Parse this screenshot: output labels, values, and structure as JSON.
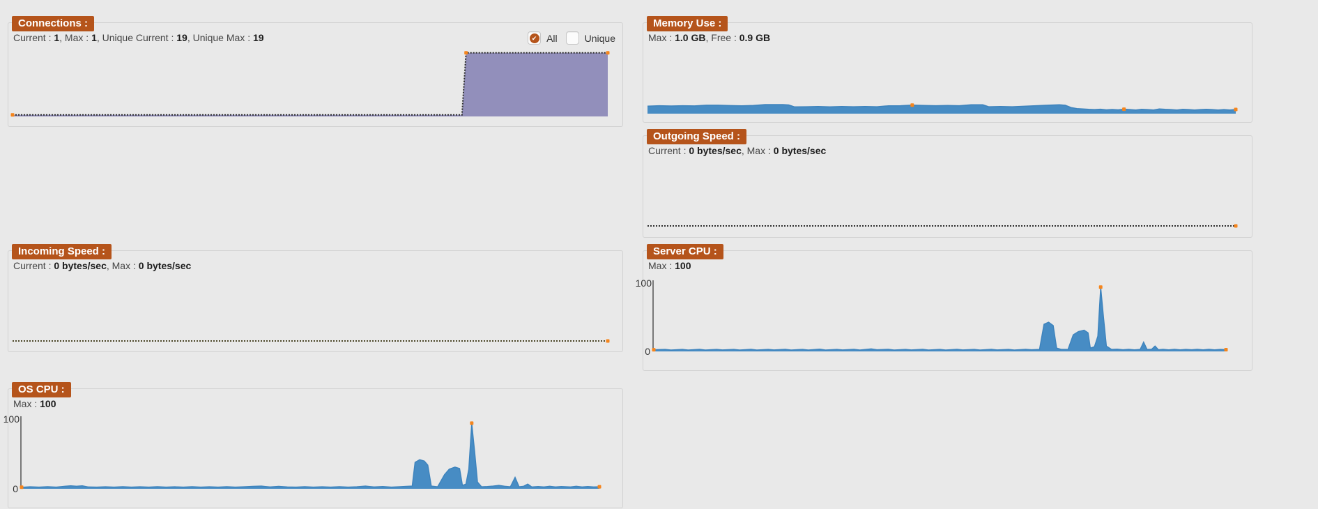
{
  "page": {
    "background": "#e9e9e9",
    "panel_border": "#d2d2d2",
    "accent": "#b5541b",
    "marker_color": "#f5851d",
    "text": "#454545",
    "value_text": "#1c1c1c"
  },
  "panels": {
    "connections": {
      "title": "Connections :",
      "stats": [
        [
          "Current : ",
          "1"
        ],
        [
          ", Max : ",
          "1"
        ],
        [
          ", Unique Current : ",
          "19"
        ],
        [
          ", Unique Max : ",
          "19"
        ]
      ],
      "checkboxes": [
        {
          "label": "All",
          "checked": true
        },
        {
          "label": "Unique",
          "checked": false
        }
      ]
    },
    "memory": {
      "title": "Memory Use :",
      "stats": [
        [
          "Max : ",
          "1.0 GB"
        ],
        [
          ", Free : ",
          "0.9 GB"
        ]
      ]
    },
    "outgoing": {
      "title": "Outgoing Speed :",
      "stats": [
        [
          "Current : ",
          "0 bytes/sec"
        ],
        [
          ", Max : ",
          "0 bytes/sec"
        ]
      ]
    },
    "incoming": {
      "title": "Incoming Speed :",
      "stats": [
        [
          "Current : ",
          "0 bytes/sec"
        ],
        [
          ", Max : ",
          "0 bytes/sec"
        ]
      ]
    },
    "server_cpu": {
      "title": "Server CPU :",
      "stats": [
        [
          "Max : ",
          "100"
        ]
      ],
      "y_max_label": "100",
      "y_min_label": "0"
    },
    "os_cpu": {
      "title": "OS CPU :",
      "stats": [
        [
          "Max : ",
          "100"
        ]
      ],
      "y_max_label": "100",
      "y_min_label": "0"
    }
  },
  "chart_data": [
    {
      "id": "connections",
      "type": "area",
      "title": "Connections over time",
      "ylim": [
        0,
        20
      ],
      "grid": false,
      "legend": "none",
      "stroke": "#2b2b2b",
      "stroke_width": 2,
      "dashed": true,
      "fill": "#928fbb",
      "points": [
        [
          0,
          0.25
        ],
        [
          75.5,
          0.25
        ],
        [
          76.2,
          19.2
        ],
        [
          100,
          19.2
        ]
      ],
      "markers": [
        [
          0,
          0.25
        ],
        [
          76.2,
          19.2
        ],
        [
          100,
          19.2
        ]
      ]
    },
    {
      "id": "memory",
      "type": "area",
      "title": "Memory use over time (GB)",
      "ylim": [
        0,
        1.0
      ],
      "grid": false,
      "legend": "none",
      "stroke": "#3d83bd",
      "stroke_width": 1.5,
      "dashed": false,
      "fill": "#478cc4",
      "points": [
        [
          0,
          0.112
        ],
        [
          2,
          0.12
        ],
        [
          4,
          0.115
        ],
        [
          6,
          0.12
        ],
        [
          8,
          0.116
        ],
        [
          10,
          0.128
        ],
        [
          12,
          0.128
        ],
        [
          14,
          0.122
        ],
        [
          16,
          0.118
        ],
        [
          18,
          0.124
        ],
        [
          20,
          0.138
        ],
        [
          23,
          0.138
        ],
        [
          24,
          0.132
        ],
        [
          25,
          0.1
        ],
        [
          27,
          0.102
        ],
        [
          29,
          0.106
        ],
        [
          31,
          0.1
        ],
        [
          33,
          0.106
        ],
        [
          35,
          0.102
        ],
        [
          37,
          0.106
        ],
        [
          39,
          0.102
        ],
        [
          41,
          0.118
        ],
        [
          43,
          0.12
        ],
        [
          45,
          0.13
        ],
        [
          47,
          0.124
        ],
        [
          49,
          0.12
        ],
        [
          51,
          0.124
        ],
        [
          53,
          0.12
        ],
        [
          55,
          0.134
        ],
        [
          57,
          0.134
        ],
        [
          58,
          0.102
        ],
        [
          60,
          0.106
        ],
        [
          62,
          0.102
        ],
        [
          64,
          0.11
        ],
        [
          66,
          0.12
        ],
        [
          68,
          0.128
        ],
        [
          70,
          0.134
        ],
        [
          71,
          0.128
        ],
        [
          72,
          0.09
        ],
        [
          73,
          0.072
        ],
        [
          74,
          0.066
        ],
        [
          75,
          0.06
        ],
        [
          76,
          0.056
        ],
        [
          77,
          0.062
        ],
        [
          78,
          0.052
        ],
        [
          79,
          0.058
        ],
        [
          80,
          0.052
        ],
        [
          81,
          0.062
        ],
        [
          82,
          0.056
        ],
        [
          83,
          0.05
        ],
        [
          84,
          0.06
        ],
        [
          85,
          0.056
        ],
        [
          86,
          0.05
        ],
        [
          87,
          0.066
        ],
        [
          88,
          0.06
        ],
        [
          89,
          0.056
        ],
        [
          90,
          0.05
        ],
        [
          91,
          0.06
        ],
        [
          92,
          0.056
        ],
        [
          93,
          0.05
        ],
        [
          94,
          0.056
        ],
        [
          95,
          0.06
        ],
        [
          96,
          0.056
        ],
        [
          97,
          0.05
        ],
        [
          98,
          0.056
        ],
        [
          99,
          0.05
        ],
        [
          100,
          0.058
        ]
      ],
      "markers": [
        [
          45,
          0.13
        ],
        [
          81,
          0.062
        ],
        [
          100,
          0.058
        ]
      ]
    },
    {
      "id": "outgoing",
      "type": "line",
      "title": "Outgoing speed over time (bytes/sec)",
      "ylim": [
        0,
        1
      ],
      "grid": false,
      "legend": "none",
      "stroke": "#2d2d2d",
      "stroke_width": 2,
      "dashed": true,
      "fill": null,
      "points": [
        [
          0,
          0
        ],
        [
          100,
          0
        ]
      ],
      "markers": [
        [
          100,
          0
        ]
      ]
    },
    {
      "id": "incoming",
      "type": "line",
      "title": "Incoming speed over time (bytes/sec)",
      "ylim": [
        0,
        1
      ],
      "grid": false,
      "legend": "none",
      "stroke": "#4a4526",
      "stroke_width": 2,
      "dashed": true,
      "fill": null,
      "points": [
        [
          0,
          0
        ],
        [
          100,
          0
        ]
      ],
      "markers": [
        [
          100,
          0
        ]
      ]
    },
    {
      "id": "server_cpu",
      "type": "area",
      "title": "Server CPU over time (%)",
      "ylim": [
        0,
        100
      ],
      "grid": false,
      "legend": "none",
      "stroke": "#3d83bd",
      "stroke_width": 1.4,
      "dashed": false,
      "fill": "#478cc4",
      "points": [
        [
          0,
          1.5
        ],
        [
          2,
          2
        ],
        [
          3,
          1
        ],
        [
          5,
          2
        ],
        [
          6,
          1.2
        ],
        [
          8,
          2.2
        ],
        [
          9,
          1.2
        ],
        [
          11,
          2
        ],
        [
          12,
          1.3
        ],
        [
          14,
          2
        ],
        [
          15,
          1.2
        ],
        [
          17,
          2.2
        ],
        [
          18,
          1.2
        ],
        [
          20,
          2
        ],
        [
          21,
          1.3
        ],
        [
          23,
          2.2
        ],
        [
          24,
          1.2
        ],
        [
          26,
          2
        ],
        [
          27,
          1.2
        ],
        [
          29,
          2.4
        ],
        [
          30,
          1.2
        ],
        [
          32,
          2
        ],
        [
          33,
          1.3
        ],
        [
          35,
          2.2
        ],
        [
          36,
          1.2
        ],
        [
          38,
          2.8
        ],
        [
          39,
          1.5
        ],
        [
          41,
          2.2
        ],
        [
          42,
          1.2
        ],
        [
          44,
          2
        ],
        [
          45,
          1.3
        ],
        [
          47,
          2.2
        ],
        [
          48,
          1.2
        ],
        [
          50,
          2
        ],
        [
          51,
          1.2
        ],
        [
          53,
          2.2
        ],
        [
          54,
          1.3
        ],
        [
          56,
          2
        ],
        [
          57,
          1.2
        ],
        [
          59,
          2.2
        ],
        [
          60,
          1.3
        ],
        [
          62,
          2
        ],
        [
          63,
          1.2
        ],
        [
          65,
          2.2
        ],
        [
          66,
          1.5
        ],
        [
          67.4,
          2
        ],
        [
          68.2,
          40
        ],
        [
          69,
          43
        ],
        [
          69.8,
          38
        ],
        [
          70.4,
          4
        ],
        [
          71.2,
          2
        ],
        [
          72.4,
          2.2
        ],
        [
          73.3,
          24
        ],
        [
          74.2,
          29
        ],
        [
          75.2,
          31
        ],
        [
          75.9,
          27
        ],
        [
          76.3,
          4
        ],
        [
          77,
          6
        ],
        [
          77.6,
          22
        ],
        [
          78.1,
          96
        ],
        [
          78.6,
          50
        ],
        [
          79.1,
          7
        ],
        [
          80,
          2
        ],
        [
          81,
          2.4
        ],
        [
          82,
          1.5
        ],
        [
          83,
          2.2
        ],
        [
          84,
          1.4
        ],
        [
          85,
          2
        ],
        [
          85.6,
          13
        ],
        [
          86.2,
          2
        ],
        [
          87,
          2.2
        ],
        [
          87.6,
          7
        ],
        [
          88.2,
          1.5
        ],
        [
          89,
          2.2
        ],
        [
          90,
          1.4
        ],
        [
          91,
          2.2
        ],
        [
          92,
          1.4
        ],
        [
          93,
          2
        ],
        [
          94,
          1.5
        ],
        [
          95,
          2.2
        ],
        [
          96,
          1.4
        ],
        [
          97,
          2.2
        ],
        [
          98,
          1.4
        ],
        [
          99,
          2
        ],
        [
          100,
          1.6
        ]
      ],
      "markers": [
        [
          0,
          1.5
        ],
        [
          78.1,
          96
        ],
        [
          100,
          1.6
        ]
      ]
    },
    {
      "id": "os_cpu",
      "type": "area",
      "title": "OS CPU over time (%)",
      "ylim": [
        0,
        100
      ],
      "grid": false,
      "legend": "none",
      "stroke": "#3d83bd",
      "stroke_width": 1.4,
      "dashed": false,
      "fill": "#478cc4",
      "points": [
        [
          0,
          1.2
        ],
        [
          1.5,
          2
        ],
        [
          3,
          1.4
        ],
        [
          4.5,
          2.2
        ],
        [
          6,
          1.4
        ],
        [
          7.5,
          2.8
        ],
        [
          8.5,
          3.4
        ],
        [
          9.5,
          2.8
        ],
        [
          10.5,
          3.4
        ],
        [
          11.5,
          1.8
        ],
        [
          13,
          1.4
        ],
        [
          14.5,
          2
        ],
        [
          16,
          1.4
        ],
        [
          17.5,
          2.2
        ],
        [
          19,
          1.4
        ],
        [
          20.5,
          2
        ],
        [
          22,
          1.4
        ],
        [
          23.5,
          2.2
        ],
        [
          25,
          1.4
        ],
        [
          26.5,
          2
        ],
        [
          28,
          1.4
        ],
        [
          29.5,
          2.2
        ],
        [
          31,
          1.4
        ],
        [
          32.5,
          2
        ],
        [
          34,
          1.4
        ],
        [
          35.5,
          2.2
        ],
        [
          37,
          1.4
        ],
        [
          38.5,
          2
        ],
        [
          40,
          2.6
        ],
        [
          41.5,
          3
        ],
        [
          43,
          1.8
        ],
        [
          44.5,
          2.6
        ],
        [
          46,
          1.8
        ],
        [
          47.5,
          1.4
        ],
        [
          49,
          2.2
        ],
        [
          50.5,
          1.4
        ],
        [
          52,
          2
        ],
        [
          53.5,
          1.4
        ],
        [
          55,
          2.2
        ],
        [
          56.5,
          1.4
        ],
        [
          58,
          2
        ],
        [
          59.5,
          3
        ],
        [
          61,
          1.8
        ],
        [
          62.5,
          2.4
        ],
        [
          64,
          1.4
        ],
        [
          65.5,
          2.2
        ],
        [
          66.6,
          2.6
        ],
        [
          67.6,
          3
        ],
        [
          68.1,
          38
        ],
        [
          68.9,
          42
        ],
        [
          69.7,
          40
        ],
        [
          70.3,
          34
        ],
        [
          70.9,
          3
        ],
        [
          72,
          2
        ],
        [
          73.2,
          20
        ],
        [
          74,
          28
        ],
        [
          75,
          31
        ],
        [
          75.8,
          29
        ],
        [
          76.3,
          4
        ],
        [
          76.9,
          6
        ],
        [
          77.4,
          28
        ],
        [
          77.9,
          96
        ],
        [
          78.4,
          55
        ],
        [
          78.9,
          9
        ],
        [
          79.6,
          2
        ],
        [
          80.6,
          2.4
        ],
        [
          81.6,
          3
        ],
        [
          82.6,
          4
        ],
        [
          83.6,
          2.8
        ],
        [
          84.6,
          2
        ],
        [
          85.4,
          16
        ],
        [
          86.1,
          2
        ],
        [
          86.9,
          2.8
        ],
        [
          87.6,
          6
        ],
        [
          88.3,
          1.8
        ],
        [
          89.4,
          2.4
        ],
        [
          90.4,
          1.8
        ],
        [
          91.4,
          2.8
        ],
        [
          92.4,
          1.8
        ],
        [
          93.4,
          2.4
        ],
        [
          95,
          1.8
        ],
        [
          96,
          2.8
        ],
        [
          97,
          1.8
        ],
        [
          98,
          2.4
        ],
        [
          99,
          1.8
        ],
        [
          100,
          2
        ]
      ],
      "markers": [
        [
          0,
          1.2
        ],
        [
          77.9,
          96
        ],
        [
          100,
          2
        ]
      ]
    }
  ]
}
